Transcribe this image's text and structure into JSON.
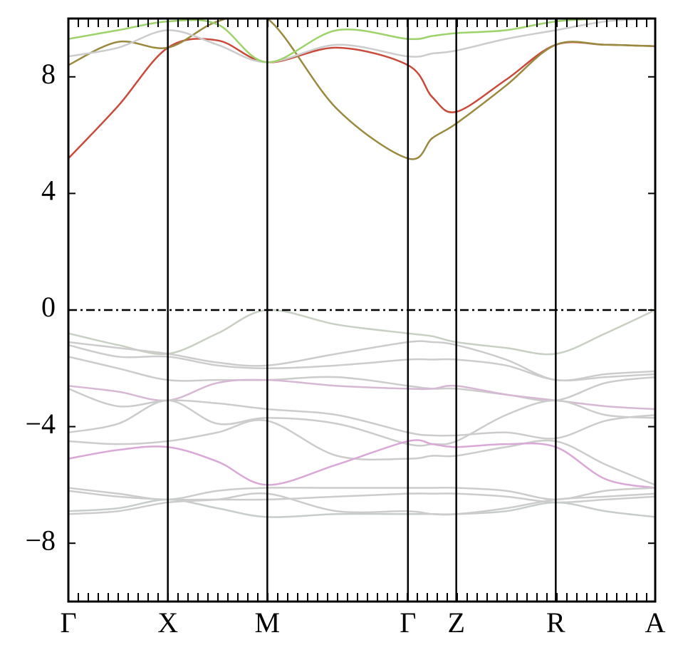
{
  "chart_data": {
    "type": "line",
    "x": [
      0,
      0.25,
      0.5,
      0.75,
      1.0,
      1.35,
      1.707,
      1.83,
      1.95,
      2.2,
      2.45,
      2.7,
      2.95
    ],
    "xlim": [
      0,
      2.95
    ],
    "xticks": [
      {
        "value": 0,
        "label": "Γ"
      },
      {
        "value": 0.5,
        "label": "X"
      },
      {
        "value": 1.0,
        "label": "M"
      },
      {
        "value": 1.707,
        "label": "Γ"
      },
      {
        "value": 1.95,
        "label": "Z"
      },
      {
        "value": 2.45,
        "label": "R"
      },
      {
        "value": 2.95,
        "label": "A"
      }
    ],
    "ylim": [
      -10,
      10
    ],
    "yticks": [
      {
        "value": -8,
        "label": "−8"
      },
      {
        "value": -4,
        "label": "−4"
      },
      0,
      4,
      8
    ],
    "fermi_level": 0,
    "series": [
      {
        "color": "#c94a3a",
        "values": [
          5.2,
          7.0,
          9.0,
          9.25,
          8.5,
          9.0,
          8.4,
          7.3,
          6.8,
          7.9,
          9.1,
          9.1,
          9.05
        ]
      },
      {
        "color": "#9a8a40",
        "values": [
          8.4,
          9.2,
          9.0,
          9.9,
          10,
          6.9,
          5.2,
          5.9,
          6.4,
          7.7,
          9.1,
          9.1,
          9.05
        ]
      },
      {
        "color": "#cccccc",
        "values": [
          8.7,
          9.0,
          9.6,
          9.1,
          8.5,
          9.1,
          8.7,
          8.8,
          8.9,
          9.3,
          9.6,
          9.9,
          10
        ]
      },
      {
        "color": "#9ed26a",
        "values": [
          9.3,
          9.6,
          9.9,
          9.8,
          8.5,
          9.6,
          9.3,
          9.4,
          9.5,
          9.6,
          9.9,
          10,
          10
        ]
      },
      {
        "color": "#c8d0c4",
        "values": [
          -0.8,
          -1.2,
          -1.5,
          -0.8,
          0,
          -0.5,
          -0.8,
          -0.9,
          -1.1,
          -1.3,
          -1.5,
          -0.8,
          0
        ]
      },
      {
        "color": "#cccccc",
        "values": [
          -1.1,
          -1.3,
          -1.5,
          -1.8,
          -1.9,
          -1.5,
          -1.1,
          -1.1,
          -1.2,
          -1.7,
          -2.4,
          -2.2,
          -2.1
        ]
      },
      {
        "color": "#cccccc",
        "values": [
          -1.2,
          -1.6,
          -1.6,
          -1.9,
          -2.0,
          -1.9,
          -1.7,
          -1.7,
          -1.7,
          -1.9,
          -2.4,
          -2.3,
          -2.2
        ]
      },
      {
        "color": "#cccccc",
        "values": [
          -1.6,
          -2.0,
          -2.4,
          -2.4,
          -2.4,
          -2.3,
          -2.6,
          -2.7,
          -2.7,
          -2.9,
          -3.1,
          -2.5,
          -2.3
        ]
      },
      {
        "color": "#d6b8d4",
        "values": [
          -2.6,
          -2.8,
          -3.1,
          -2.5,
          -2.4,
          -2.6,
          -2.7,
          -2.7,
          -2.6,
          -2.9,
          -3.1,
          -3.3,
          -3.4
        ]
      },
      {
        "color": "#cccccc",
        "values": [
          -2.7,
          -3.3,
          -3.1,
          -3.2,
          -3.4,
          -3.6,
          -4.2,
          -4.3,
          -4.3,
          -4.2,
          -4.4,
          -3.8,
          -3.6
        ]
      },
      {
        "color": "#cccccc",
        "values": [
          -4.2,
          -3.9,
          -3.1,
          -3.9,
          -3.7,
          -3.9,
          -4.6,
          -4.6,
          -4.5,
          -3.6,
          -3.1,
          -3.6,
          -3.7
        ]
      },
      {
        "color": "#cccccc",
        "values": [
          -4.5,
          -4.6,
          -4.5,
          -4.2,
          -3.8,
          -5.0,
          -5.1,
          -5.0,
          -5.0,
          -4.7,
          -4.5,
          -5.3,
          -6.0
        ]
      },
      {
        "color": "#d9a8d6",
        "values": [
          -5.1,
          -4.8,
          -4.7,
          -5.2,
          -6.0,
          -5.3,
          -4.5,
          -4.6,
          -4.7,
          -4.6,
          -4.7,
          -5.8,
          -6.1
        ]
      },
      {
        "color": "#cccccc",
        "values": [
          -6.1,
          -6.3,
          -6.5,
          -6.2,
          -6.1,
          -6.1,
          -6.1,
          -6.1,
          -6.1,
          -6.2,
          -6.5,
          -6.2,
          -6.1
        ]
      },
      {
        "color": "#cccccc",
        "values": [
          -6.2,
          -6.4,
          -6.5,
          -6.5,
          -6.5,
          -6.4,
          -6.3,
          -6.3,
          -6.3,
          -6.4,
          -6.6,
          -6.5,
          -6.4
        ]
      },
      {
        "color": "#c8cccc",
        "values": [
          -6.9,
          -6.8,
          -6.5,
          -6.8,
          -7.1,
          -7.0,
          -7.0,
          -7.0,
          -7.0,
          -6.9,
          -6.6,
          -6.9,
          -7.1
        ]
      },
      {
        "color": "#cccccc",
        "values": [
          -7.0,
          -6.9,
          -6.6,
          -6.5,
          -6.3,
          -6.9,
          -6.9,
          -7.0,
          -7.0,
          -6.8,
          -6.5,
          -6.4,
          -6.3
        ]
      }
    ]
  }
}
